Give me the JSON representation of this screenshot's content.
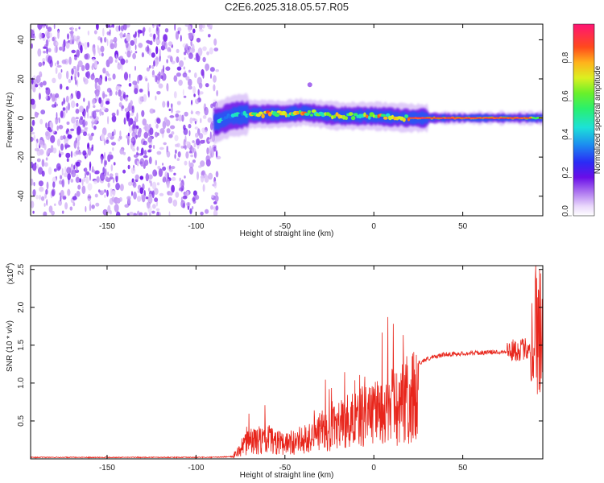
{
  "title": "C2E6.2025.318.05.57.R05",
  "chart_data": [
    {
      "type": "heatmap",
      "xlabel": "Height of straight line (km)",
      "ylabel": "Frequency (Hz)",
      "xlim": [
        -193,
        95
      ],
      "ylim": [
        -50,
        48
      ],
      "xticks": [
        -150,
        -100,
        -50,
        0,
        50
      ],
      "yticks": [
        -40,
        -20,
        0,
        20,
        40
      ],
      "colorbar": {
        "label": "Normalized spectral amplitude",
        "range": [
          0,
          1
        ],
        "ticks": [
          "0.0",
          "0.2",
          "0.4",
          "0.6",
          "0.8"
        ],
        "tick_values": [
          0.0,
          0.2,
          0.4,
          0.6,
          0.8
        ]
      },
      "ridge": {
        "x_start": -90,
        "x_end": 95,
        "frequency": [
          [
            -88,
            -2
          ],
          [
            -80,
            1
          ],
          [
            -70,
            2
          ],
          [
            -60,
            2
          ],
          [
            -50,
            2
          ],
          [
            -40,
            3
          ],
          [
            -30,
            2
          ],
          [
            -20,
            1
          ],
          [
            -10,
            1
          ],
          [
            0,
            1
          ],
          [
            10,
            0.5
          ],
          [
            20,
            0
          ],
          [
            40,
            0
          ],
          [
            60,
            0
          ],
          [
            80,
            0
          ],
          [
            95,
            0
          ]
        ]
      },
      "noise_region": {
        "x_range": [
          -193,
          -88
        ]
      }
    },
    {
      "type": "line",
      "xlabel": "Height of straight line (km)",
      "ylabel": "SNR (10 * v/v)",
      "scale_label": "(x10",
      "scale_exp": "4",
      "scale_close": ")",
      "xlim": [
        -193,
        95
      ],
      "ylim": [
        0,
        2.55
      ],
      "xticks": [
        -150,
        -100,
        -50,
        0,
        50
      ],
      "yticks": [
        0.5,
        1.0,
        1.5,
        2.0,
        2.5
      ],
      "ytick_labels": [
        "0.5",
        "1.0",
        "1.5",
        "2.0",
        "2.5"
      ],
      "series": [
        {
          "color": "#e8261c",
          "envelope": [
            [
              -193,
              0.02
            ],
            [
              -90,
              0.02
            ],
            [
              -80,
              0.03
            ],
            [
              -75,
              0.2
            ],
            [
              -70,
              0.35
            ],
            [
              -60,
              0.4
            ],
            [
              -50,
              0.3
            ],
            [
              -40,
              0.4
            ],
            [
              -30,
              0.55
            ],
            [
              -20,
              0.65
            ],
            [
              -10,
              0.8
            ],
            [
              0,
              0.9
            ],
            [
              10,
              1.05
            ],
            [
              20,
              1.2
            ],
            [
              30,
              1.32
            ],
            [
              40,
              1.38
            ],
            [
              60,
              1.4
            ],
            [
              75,
              1.42
            ],
            [
              85,
              1.45
            ],
            [
              90,
              1.5
            ],
            [
              95,
              1.6
            ]
          ]
        }
      ]
    }
  ]
}
